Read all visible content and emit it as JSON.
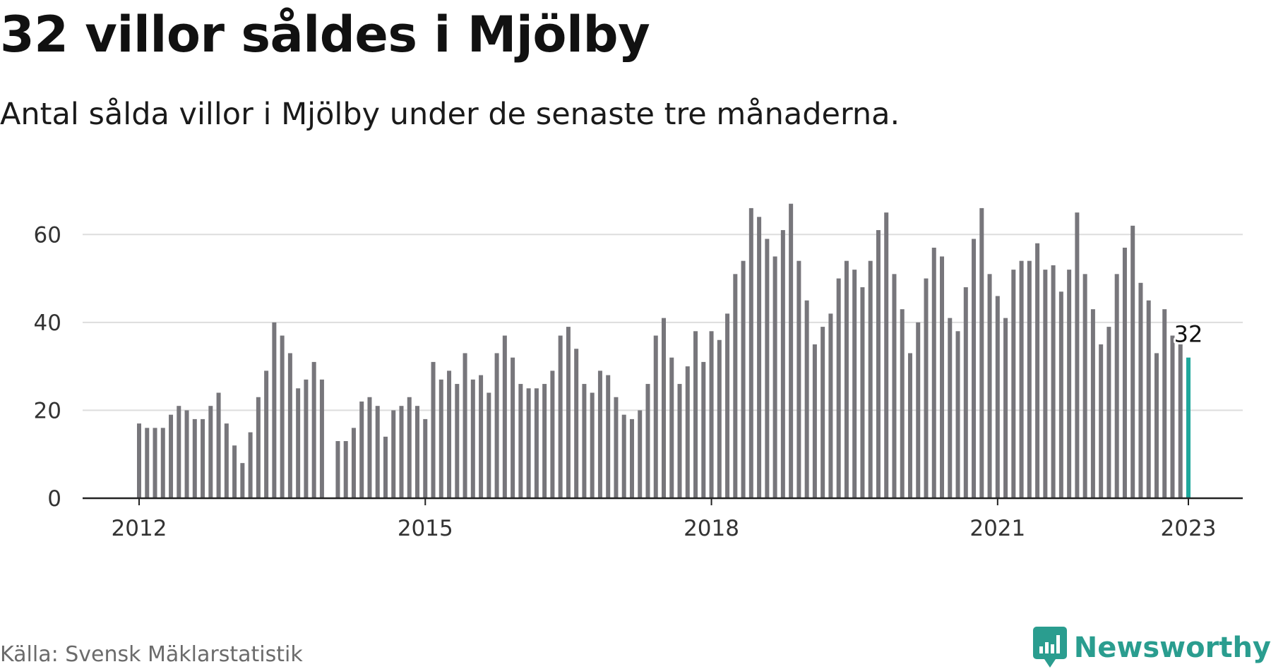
{
  "title": "32 villor såldes i Mjölby",
  "subtitle": "Antal sålda villor i Mjölby under de senaste tre månaderna.",
  "source": "Källa: Svensk Mäklarstatistik",
  "brand": "Newsworthy",
  "colors": {
    "bar": "#77767b",
    "highlight": "#1fa89c",
    "grid": "#dddddd",
    "axis": "#222222",
    "brand": "#2a9d8f"
  },
  "chart_data": {
    "type": "bar",
    "title": "32 villor såldes i Mjölby",
    "subtitle": "Antal sålda villor i Mjölby under de senaste tre månaderna.",
    "xlabel": "",
    "ylabel": "",
    "ylim": [
      0,
      70
    ],
    "yticks": [
      0,
      20,
      40,
      60
    ],
    "xticks": [
      {
        "label": "2012",
        "index": 0
      },
      {
        "label": "2015",
        "index": 36
      },
      {
        "label": "2018",
        "index": 72
      },
      {
        "label": "2021",
        "index": 108
      },
      {
        "label": "2023",
        "index": 132
      }
    ],
    "grid": true,
    "frequency": "monthly, Jan 2012 – Jan 2023",
    "highlight_label": "32",
    "values": [
      17,
      16,
      16,
      16,
      19,
      21,
      20,
      18,
      18,
      21,
      24,
      17,
      12,
      8,
      15,
      23,
      29,
      40,
      37,
      33,
      25,
      27,
      31,
      27,
      null,
      13,
      13,
      16,
      22,
      23,
      21,
      14,
      20,
      21,
      23,
      21,
      18,
      31,
      27,
      29,
      26,
      33,
      27,
      28,
      24,
      33,
      37,
      32,
      26,
      25,
      25,
      26,
      29,
      37,
      39,
      34,
      26,
      24,
      29,
      28,
      23,
      19,
      18,
      20,
      26,
      37,
      41,
      32,
      26,
      30,
      38,
      31,
      38,
      36,
      42,
      51,
      54,
      66,
      64,
      59,
      55,
      61,
      67,
      54,
      45,
      35,
      39,
      42,
      50,
      54,
      52,
      48,
      54,
      61,
      65,
      51,
      43,
      33,
      40,
      50,
      57,
      55,
      41,
      38,
      48,
      59,
      66,
      51,
      46,
      41,
      52,
      54,
      54,
      58,
      52,
      53,
      47,
      52,
      65,
      51,
      43,
      35,
      39,
      51,
      57,
      62,
      49,
      45,
      33,
      43,
      37,
      35,
      32
    ]
  }
}
